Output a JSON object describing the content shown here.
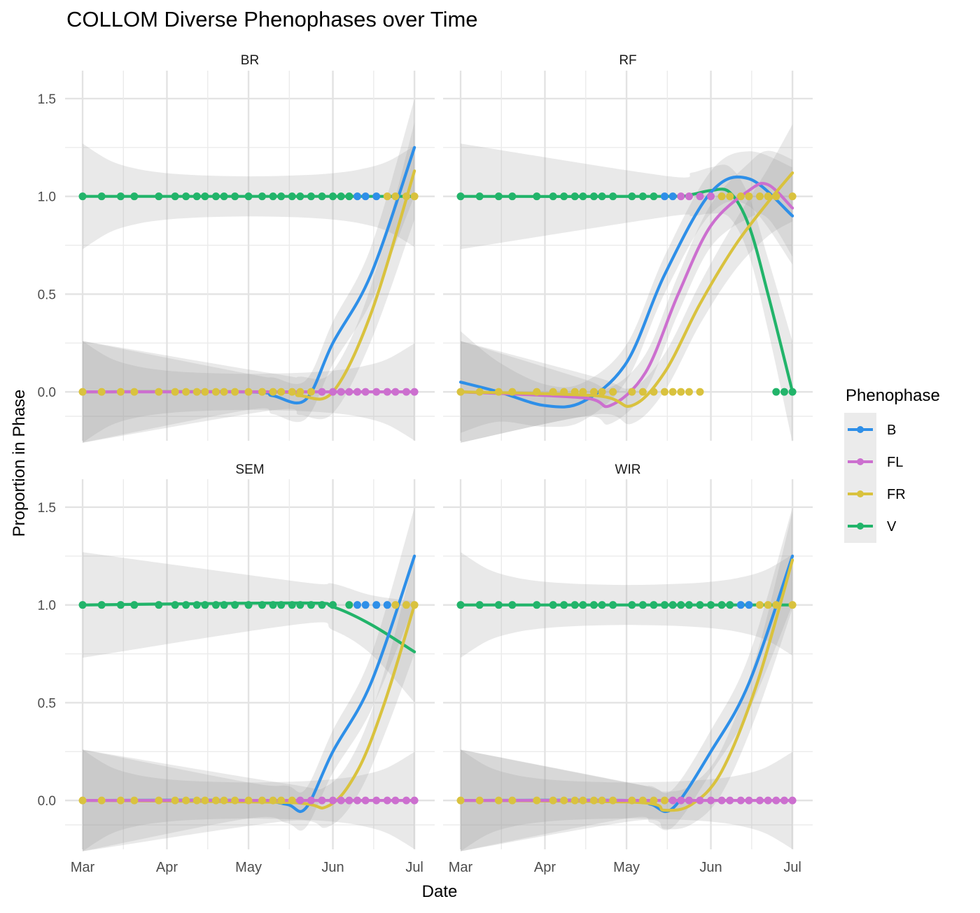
{
  "title": "COLLOM Diverse Phenophases over Time",
  "xlabel": "Date",
  "ylabel": "Proportion in Phase",
  "legend": {
    "title": "Phenophase",
    "position": "right",
    "entries": [
      {
        "name": "B",
        "color": "#2E8FE8"
      },
      {
        "name": "FL",
        "color": "#CC6FCF"
      },
      {
        "name": "FR",
        "color": "#D9C23E"
      },
      {
        "name": "V",
        "color": "#22B46A"
      }
    ]
  },
  "chart_data": {
    "type": "scatter",
    "facets": [
      "BR",
      "RF",
      "SEM",
      "WIR"
    ],
    "x_ticks": [
      "Mar",
      "Apr",
      "May",
      "Jun",
      "Jul"
    ],
    "y_ticks": [
      "1.5",
      "1.0",
      "0.5",
      "0.0"
    ],
    "x_range": [
      "2024-03-01",
      "2024-07-02"
    ],
    "ylim": [
      -0.25,
      1.6
    ],
    "grid": true,
    "smooth_with_confidence_band": true,
    "panels": [
      {
        "name": "BR",
        "points": [
          {
            "series": "V",
            "y": 1,
            "dates": [
              "03-01",
              "03-08",
              "03-15",
              "03-20",
              "03-29",
              "04-04",
              "04-08",
              "04-12",
              "04-15",
              "04-19",
              "04-22",
              "04-26",
              "05-01",
              "05-06",
              "05-10",
              "05-13",
              "05-17",
              "05-20",
              "05-24",
              "05-28",
              "06-01",
              "06-04",
              "06-07"
            ]
          },
          {
            "series": "B",
            "y": 1,
            "dates": [
              "06-10",
              "06-13",
              "06-17"
            ]
          },
          {
            "series": "FR",
            "y": 1,
            "dates": [
              "06-21",
              "06-24",
              "06-28",
              "07-01"
            ]
          },
          {
            "series": "FR",
            "y": 0,
            "dates": [
              "03-01",
              "03-08",
              "03-15",
              "03-20",
              "03-29",
              "04-04",
              "04-08",
              "04-12",
              "04-15",
              "04-19",
              "04-22",
              "04-26",
              "05-01",
              "05-06",
              "05-10",
              "05-13",
              "05-17",
              "05-20",
              "05-24"
            ]
          },
          {
            "series": "FL",
            "y": 0,
            "dates": [
              "05-28",
              "06-01",
              "06-04",
              "06-07",
              "06-10",
              "06-13",
              "06-17",
              "06-21",
              "06-24",
              "06-28",
              "07-01"
            ]
          }
        ],
        "smooths": [
          {
            "series": "V",
            "pts": [
              [
                "03-01",
                1
              ],
              [
                "07-01",
                1
              ]
            ]
          },
          {
            "series": "B",
            "pts": [
              [
                "03-01",
                0
              ],
              [
                "05-01",
                0
              ],
              [
                "05-10",
                -0.02
              ],
              [
                "05-22",
                -0.04
              ],
              [
                "06-01",
                0.25
              ],
              [
                "06-15",
                0.6
              ],
              [
                "07-01",
                1.25
              ]
            ]
          },
          {
            "series": "FR",
            "pts": [
              [
                "03-01",
                0
              ],
              [
                "05-10",
                0
              ],
              [
                "05-20",
                -0.02
              ],
              [
                "06-01",
                0
              ],
              [
                "06-15",
                0.4
              ],
              [
                "07-01",
                1.13
              ]
            ]
          },
          {
            "series": "FL",
            "pts": [
              [
                "03-01",
                0
              ],
              [
                "07-01",
                0
              ]
            ]
          }
        ]
      },
      {
        "name": "RF",
        "points": [
          {
            "series": "V",
            "y": 1,
            "dates": [
              "03-01",
              "03-08",
              "03-15",
              "03-20",
              "03-29",
              "04-04",
              "04-08",
              "04-12",
              "04-15",
              "04-19",
              "04-22",
              "04-26",
              "05-03",
              "05-07",
              "05-11"
            ]
          },
          {
            "series": "B",
            "y": 1,
            "dates": [
              "05-15",
              "05-18"
            ]
          },
          {
            "series": "FL",
            "y": 1,
            "dates": [
              "05-21",
              "05-24",
              "05-28",
              "06-01"
            ]
          },
          {
            "series": "FR",
            "y": 1,
            "dates": [
              "06-05",
              "06-08",
              "06-12",
              "06-15",
              "06-19",
              "06-22",
              "06-25",
              "07-01"
            ]
          },
          {
            "series": "FR",
            "y": 0,
            "dates": [
              "03-01",
              "03-08",
              "03-15",
              "03-20",
              "03-29",
              "04-04",
              "04-08",
              "04-12",
              "04-15",
              "04-19",
              "04-22",
              "04-26",
              "05-03",
              "05-07",
              "05-11",
              "05-15",
              "05-18",
              "05-21",
              "05-24",
              "05-28"
            ]
          },
          {
            "series": "V",
            "y": 0,
            "dates": [
              "06-25",
              "06-28",
              "07-01"
            ]
          }
        ],
        "smooths": [
          {
            "series": "V",
            "pts": [
              [
                "03-01",
                1
              ],
              [
                "05-15",
                1
              ],
              [
                "05-25",
                1.01
              ],
              [
                "06-01",
                1.03
              ],
              [
                "06-08",
                1.02
              ],
              [
                "06-15",
                0.85
              ],
              [
                "06-22",
                0.5
              ],
              [
                "07-01",
                0
              ]
            ]
          },
          {
            "series": "B",
            "pts": [
              [
                "03-01",
                0.05
              ],
              [
                "03-15",
                0
              ],
              [
                "04-01",
                -0.07
              ],
              [
                "04-15",
                -0.05
              ],
              [
                "05-01",
                0.15
              ],
              [
                "05-15",
                0.6
              ],
              [
                "06-01",
                1.02
              ],
              [
                "06-15",
                1.09
              ],
              [
                "07-01",
                0.9
              ]
            ]
          },
          {
            "series": "FL",
            "pts": [
              [
                "03-01",
                0
              ],
              [
                "04-15",
                -0.03
              ],
              [
                "04-25",
                -0.07
              ],
              [
                "05-08",
                0.1
              ],
              [
                "05-20",
                0.5
              ],
              [
                "06-01",
                0.85
              ],
              [
                "06-15",
                1.03
              ],
              [
                "06-22",
                1.06
              ],
              [
                "07-01",
                0.94
              ]
            ]
          },
          {
            "series": "FR",
            "pts": [
              [
                "03-01",
                0
              ],
              [
                "04-20",
                -0.02
              ],
              [
                "05-03",
                -0.07
              ],
              [
                "05-15",
                0.1
              ],
              [
                "05-28",
                0.45
              ],
              [
                "06-10",
                0.75
              ],
              [
                "06-22",
                0.97
              ],
              [
                "07-01",
                1.12
              ]
            ]
          }
        ]
      },
      {
        "name": "SEM",
        "points": [
          {
            "series": "V",
            "y": 1,
            "dates": [
              "03-01",
              "03-08",
              "03-15",
              "03-20",
              "03-29",
              "04-04",
              "04-08",
              "04-12",
              "04-15",
              "04-19",
              "04-22",
              "04-26",
              "05-01",
              "05-06",
              "05-10",
              "05-13",
              "05-17",
              "05-20",
              "05-24",
              "05-28",
              "06-01",
              "06-07"
            ]
          },
          {
            "series": "B",
            "y": 1,
            "dates": [
              "06-10",
              "06-13",
              "06-17",
              "06-21"
            ]
          },
          {
            "series": "FR",
            "y": 1,
            "dates": [
              "06-24",
              "06-28",
              "07-01"
            ]
          },
          {
            "series": "FR",
            "y": 0,
            "dates": [
              "03-01",
              "03-08",
              "03-15",
              "03-20",
              "03-29",
              "04-04",
              "04-08",
              "04-12",
              "04-15",
              "04-19",
              "04-22",
              "04-26",
              "05-01",
              "05-06",
              "05-10",
              "05-13",
              "05-17"
            ]
          },
          {
            "series": "FL",
            "y": 0,
            "dates": [
              "05-20",
              "05-24",
              "05-28",
              "06-01",
              "06-04",
              "06-07",
              "06-10",
              "06-13",
              "06-17",
              "06-21",
              "06-24",
              "06-28",
              "07-01"
            ]
          }
        ],
        "smooths": [
          {
            "series": "V",
            "pts": [
              [
                "03-01",
                1
              ],
              [
                "05-20",
                1.01
              ],
              [
                "06-01",
                0.99
              ],
              [
                "06-15",
                0.9
              ],
              [
                "07-01",
                0.76
              ]
            ]
          },
          {
            "series": "B",
            "pts": [
              [
                "03-01",
                0
              ],
              [
                "05-01",
                0
              ],
              [
                "05-15",
                -0.02
              ],
              [
                "05-22",
                -0.04
              ],
              [
                "06-01",
                0.25
              ],
              [
                "06-15",
                0.6
              ],
              [
                "07-01",
                1.25
              ]
            ]
          },
          {
            "series": "FR",
            "pts": [
              [
                "03-01",
                0
              ],
              [
                "05-15",
                -0.01
              ],
              [
                "05-30",
                -0.03
              ],
              [
                "06-10",
                0.15
              ],
              [
                "06-20",
                0.5
              ],
              [
                "07-01",
                1
              ]
            ]
          },
          {
            "series": "FL",
            "pts": [
              [
                "03-01",
                0
              ],
              [
                "07-01",
                0
              ]
            ]
          }
        ]
      },
      {
        "name": "WIR",
        "points": [
          {
            "series": "V",
            "y": 1,
            "dates": [
              "03-01",
              "03-08",
              "03-15",
              "03-20",
              "03-29",
              "04-04",
              "04-08",
              "04-12",
              "04-15",
              "04-19",
              "04-22",
              "04-26",
              "05-03",
              "05-07",
              "05-11",
              "05-15",
              "05-18",
              "05-21",
              "05-24",
              "05-28",
              "06-01",
              "06-05",
              "06-08"
            ]
          },
          {
            "series": "B",
            "y": 1,
            "dates": [
              "06-12",
              "06-15"
            ]
          },
          {
            "series": "FR",
            "y": 1,
            "dates": [
              "06-19",
              "06-22",
              "06-25",
              "07-01"
            ]
          },
          {
            "series": "FR",
            "y": 0,
            "dates": [
              "03-01",
              "03-08",
              "03-15",
              "03-20",
              "03-29",
              "04-04",
              "04-08",
              "04-12",
              "04-15",
              "04-19",
              "04-22",
              "04-26",
              "05-03",
              "05-07",
              "05-11",
              "05-15"
            ]
          },
          {
            "series": "FL",
            "y": 0,
            "dates": [
              "05-18",
              "05-21",
              "05-24",
              "05-28",
              "06-01",
              "06-05",
              "06-08",
              "06-12",
              "06-15",
              "06-19",
              "06-22",
              "06-25",
              "06-28",
              "07-01"
            ]
          }
        ],
        "smooths": [
          {
            "series": "V",
            "pts": [
              [
                "03-01",
                1
              ],
              [
                "07-01",
                1
              ]
            ]
          },
          {
            "series": "B",
            "pts": [
              [
                "03-01",
                0
              ],
              [
                "05-01",
                0
              ],
              [
                "05-10",
                -0.02
              ],
              [
                "05-18",
                -0.04
              ],
              [
                "06-01",
                0.25
              ],
              [
                "06-15",
                0.6
              ],
              [
                "07-01",
                1.25
              ]
            ]
          },
          {
            "series": "FR",
            "pts": [
              [
                "03-01",
                0
              ],
              [
                "05-05",
                -0.01
              ],
              [
                "05-15",
                -0.05
              ],
              [
                "05-25",
                -0.02
              ],
              [
                "06-05",
                0.15
              ],
              [
                "06-18",
                0.6
              ],
              [
                "07-01",
                1.23
              ]
            ]
          },
          {
            "series": "FL",
            "pts": [
              [
                "03-01",
                0
              ],
              [
                "07-01",
                0
              ]
            ]
          }
        ]
      }
    ]
  }
}
